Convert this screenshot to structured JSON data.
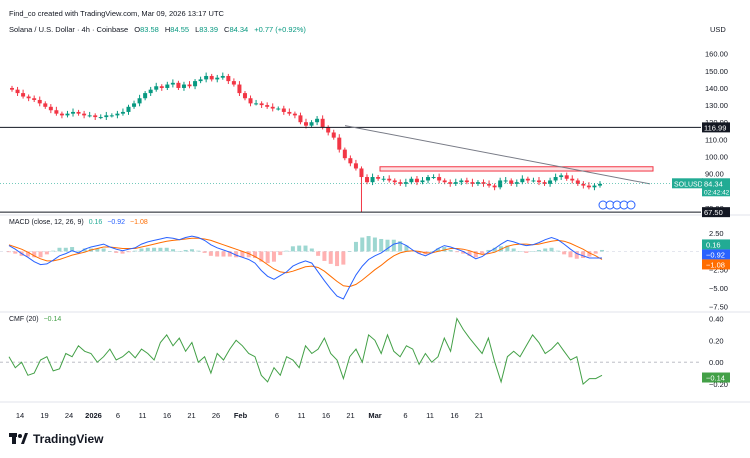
{
  "header": {
    "credit": "Find_co created with TradingView.com, Mar 09, 2026 13:17 UTC",
    "symbol": "Solana / U.S. Dollar · 4h · Coinbase",
    "open_label": "O",
    "open": "83.58",
    "high_label": "H",
    "high": "84.55",
    "low_label": "L",
    "low": "83.39",
    "close_label": "C",
    "close": "84.34",
    "change": "+0.77 (+0.92%)",
    "currency": "USD"
  },
  "macd_legend": {
    "name": "MACD (close, 12, 26, 9)",
    "v1": "0.16",
    "v2": "−0.92",
    "v3": "−1.08"
  },
  "cmf_legend": {
    "name": "CMF (20)",
    "v1": "−0.14"
  },
  "footer": {
    "brand": "TradingView"
  },
  "colors": {
    "up": "#089981",
    "down": "#f23645",
    "macd": "#2962ff",
    "signal": "#ff6d00",
    "cmf": "#43a047",
    "trend": "#787b86"
  },
  "chart_data": [
    {
      "type": "candlestick",
      "title": "Solana / U.S. Dollar · 4h · Coinbase",
      "x_ticks": [
        "14",
        "19",
        "24",
        "2026",
        "6",
        "11",
        "16",
        "21",
        "26",
        "Feb",
        "6",
        "11",
        "16",
        "21",
        "Mar",
        "6",
        "11",
        "16",
        "21"
      ],
      "y_ticks": [
        "160.00",
        "150.00",
        "140.00",
        "130.00",
        "120.00",
        "110.00",
        "100.00",
        "90.00",
        "80.00",
        "70.00"
      ],
      "ylim": [
        67,
        168
      ],
      "price_levels": [
        {
          "label": "116.99",
          "value": 116.99
        },
        {
          "label": "67.50",
          "value": 67.5
        }
      ],
      "current_price": {
        "symbol": "SOLUSD",
        "price": "84.34",
        "countdown": "02:42:42"
      },
      "resistance_zone": [
        91.5,
        94
      ],
      "series": [
        {
          "values": [
            139,
            137,
            135,
            134,
            133,
            131,
            129,
            127,
            125,
            124,
            125,
            126,
            125,
            124,
            124,
            123,
            123,
            124,
            124,
            125,
            126,
            129,
            131,
            134,
            137,
            139,
            141,
            140,
            142,
            143,
            140,
            142,
            141,
            144,
            145,
            147,
            145,
            146,
            147,
            144,
            142,
            137,
            134,
            131,
            131,
            130,
            129,
            128,
            128,
            126,
            125,
            124,
            120,
            118,
            120,
            122,
            117,
            114,
            111,
            104,
            99,
            96,
            93,
            88,
            85,
            88,
            87,
            87,
            86,
            85,
            84,
            85,
            87,
            85,
            86,
            88,
            88,
            86,
            85,
            84,
            85,
            86,
            85,
            84,
            85,
            84,
            83,
            82,
            86,
            86,
            84,
            85,
            87,
            86,
            86,
            85,
            84,
            86,
            88,
            89,
            87,
            86,
            84,
            83,
            82,
            83,
            84
          ]
        }
      ],
      "trendline": [
        {
          "x": "Feb",
          "y": 118
        },
        {
          "x": "Mar 11",
          "y": 84
        }
      ]
    },
    {
      "type": "line",
      "title": "MACD (close, 12, 26, 9)",
      "y_ticks": [
        "2.50",
        "0.00",
        "−2.50",
        "−5.00",
        "−7.50"
      ],
      "ylim": [
        -8,
        3.2
      ],
      "series": [
        {
          "name": "MACD",
          "values": [
            0.8,
            0.3,
            -0.3,
            -0.8,
            -1.4,
            -1.8,
            -1.7,
            -1.2,
            -0.6,
            -0.3,
            0.1,
            -0.2,
            0.3,
            0.6,
            0.8,
            1.0,
            0.6,
            0.3,
            0.1,
            0.3,
            0.5,
            1.0,
            1.3,
            1.5,
            1.7,
            1.9,
            1.8,
            1.6,
            1.9,
            2.1,
            1.9,
            1.5,
            0.9,
            0.5,
            0.2,
            -0.1,
            -0.5,
            -0.8,
            -1.1,
            -1.6,
            -2.6,
            -3.4,
            -3.8,
            -3.3,
            -2.8,
            -2.0,
            -1.6,
            -1.3,
            -1.6,
            -2.8,
            -4.0,
            -5.1,
            -6.1,
            -6.5,
            -4.8,
            -3.2,
            -2.0,
            -1.1,
            -0.6,
            -0.2,
            0.4,
            1.0,
            1.2,
            0.8,
            0.2,
            -0.3,
            -0.6,
            -0.2,
            0.4,
            0.8,
            0.6,
            0.3,
            0.0,
            -0.5,
            -1.0,
            -0.7,
            -0.1,
            0.4,
            1.0,
            1.5,
            1.3,
            1.0,
            0.8,
            0.9,
            1.2,
            1.6,
            1.9,
            1.6,
            1.0,
            0.3,
            -0.3,
            -0.6,
            -0.9,
            -0.9,
            -0.9
          ]
        },
        {
          "name": "Signal",
          "values": [
            0.9,
            0.6,
            0.3,
            -0.1,
            -0.6,
            -1.0,
            -1.3,
            -1.3,
            -1.1,
            -0.8,
            -0.5,
            -0.3,
            -0.1,
            0.2,
            0.4,
            0.6,
            0.6,
            0.5,
            0.4,
            0.4,
            0.4,
            0.6,
            0.8,
            1.0,
            1.2,
            1.4,
            1.5,
            1.6,
            1.7,
            1.8,
            1.8,
            1.7,
            1.5,
            1.2,
            0.9,
            0.6,
            0.3,
            0.0,
            -0.3,
            -0.7,
            -1.2,
            -1.8,
            -2.4,
            -2.8,
            -2.9,
            -2.7,
            -2.4,
            -2.1,
            -2.0,
            -2.2,
            -2.7,
            -3.4,
            -4.1,
            -4.7,
            -4.8,
            -4.5,
            -3.9,
            -3.2,
            -2.5,
            -1.9,
            -1.2,
            -0.6,
            -0.2,
            0.0,
            0.1,
            0.0,
            -0.2,
            -0.2,
            0.0,
            0.2,
            0.4,
            0.4,
            0.3,
            0.1,
            -0.2,
            -0.4,
            -0.3,
            -0.1,
            0.3,
            0.7,
            0.9,
            1.0,
            1.0,
            0.9,
            1.0,
            1.2,
            1.4,
            1.5,
            1.4,
            1.1,
            0.7,
            0.3,
            -0.2,
            -0.6,
            -1.1
          ]
        }
      ],
      "legend_values": [
        "0.16",
        "−0.92",
        "−1.08"
      ]
    },
    {
      "type": "line",
      "title": "CMF (20)",
      "y_ticks": [
        "0.40",
        "0.20",
        "0.00",
        "−0.20"
      ],
      "ylim": [
        -0.3,
        0.45
      ],
      "series": [
        {
          "name": "CMF (20)",
          "values": [
            0.05,
            -0.05,
            0.0,
            -0.12,
            -0.1,
            0.02,
            0.05,
            -0.08,
            -0.06,
            0.08,
            0.05,
            0.15,
            0.1,
            0.08,
            0.0,
            0.05,
            0.12,
            0.02,
            0.05,
            0.1,
            0.04,
            0.12,
            0.08,
            0.02,
            0.18,
            0.25,
            0.15,
            0.22,
            0.1,
            0.18,
            0.0,
            0.05,
            -0.1,
            0.08,
            0.02,
            0.12,
            0.2,
            0.15,
            0.08,
            0.05,
            -0.12,
            -0.18,
            -0.05,
            -0.12,
            0.05,
            0.02,
            -0.05,
            0.15,
            0.08,
            0.12,
            0.22,
            0.08,
            0.02,
            -0.15,
            0.05,
            0.12,
            0.0,
            0.25,
            0.2,
            0.08,
            0.25,
            0.1,
            0.05,
            0.15,
            0.12,
            -0.02,
            0.08,
            0.0,
            0.05,
            0.22,
            0.1,
            0.4,
            0.3,
            0.22,
            0.15,
            0.08,
            0.22,
            0.0,
            -0.18,
            0.05,
            0.1,
            0.05,
            0.15,
            0.25,
            0.18,
            0.08,
            0.12,
            0.18,
            0.1,
            0.02,
            0.05,
            -0.2,
            -0.15,
            -0.15,
            -0.12
          ]
        }
      ],
      "legend_values": [
        "−0.14"
      ]
    }
  ]
}
